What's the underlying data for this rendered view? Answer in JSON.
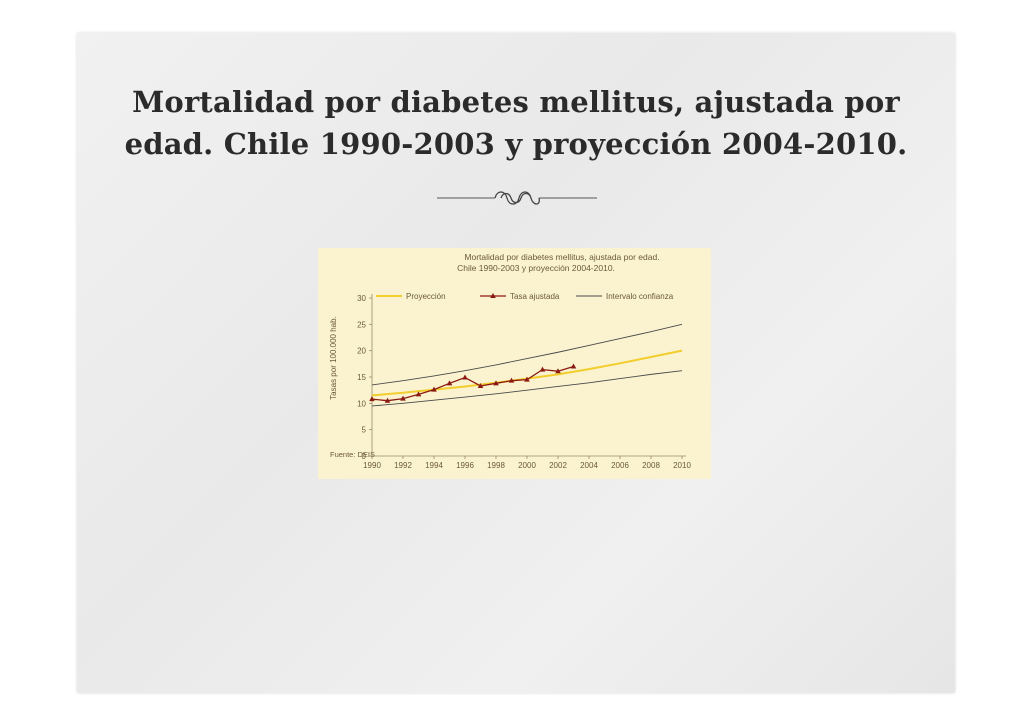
{
  "slide": {
    "title_line1": "Mortalidad por diabetes mellitus, ajustada por",
    "title_line2": "edad. Chile 1990-2003 y proyección 2004-2010."
  },
  "chart_data": {
    "type": "line",
    "title_line1": "Mortalidad por diabetes mellitus, ajustada por edad.",
    "title_line2": "Chile 1990-2003 y proyección 2004-2010.",
    "ylabel": "Tasas por 100.000 hab.",
    "xlabel": "",
    "source": "Fuente: DEIS",
    "ylim": [
      0,
      30
    ],
    "yticks": [
      0,
      5,
      10,
      15,
      20,
      25,
      30
    ],
    "xlim": [
      1990,
      2010
    ],
    "xticks": [
      1990,
      1992,
      1994,
      1996,
      1998,
      2000,
      2002,
      2004,
      2006,
      2008,
      2010
    ],
    "legend_position": "top",
    "grid": false,
    "series": [
      {
        "name": "Proyección",
        "color": "#f2cd2c",
        "x": [
          1990,
          1992,
          1994,
          1996,
          1998,
          2000,
          2002,
          2004,
          2006,
          2008,
          2010
        ],
        "values": [
          11.5,
          12.0,
          12.6,
          13.2,
          13.9,
          14.7,
          15.5,
          16.5,
          17.6,
          18.8,
          20.0
        ]
      },
      {
        "name": "Tasa ajustada",
        "color": "#8b1a10",
        "x": [
          1990,
          1991,
          1992,
          1993,
          1994,
          1995,
          1996,
          1997,
          1998,
          1999,
          2000,
          2001,
          2002,
          2003
        ],
        "values": [
          10.8,
          10.5,
          10.9,
          11.7,
          12.6,
          13.8,
          14.9,
          13.3,
          13.8,
          14.3,
          14.5,
          16.4,
          16.1,
          17.0
        ]
      },
      {
        "name": "Intervalo confianza",
        "color": "#4a4a4a",
        "parts": [
          {
            "x": [
              1990,
              1992,
              1994,
              1996,
              1998,
              2000,
              2002,
              2004,
              2006,
              2008,
              2010
            ],
            "values": [
              13.5,
              14.3,
              15.2,
              16.2,
              17.3,
              18.5,
              19.7,
              21.0,
              22.3,
              23.6,
              25.0
            ]
          },
          {
            "x": [
              1990,
              1992,
              1994,
              1996,
              1998,
              2000,
              2002,
              2004,
              2006,
              2008,
              2010
            ],
            "values": [
              9.5,
              10.0,
              10.6,
              11.2,
              11.8,
              12.5,
              13.2,
              13.9,
              14.7,
              15.5,
              16.2
            ]
          }
        ]
      }
    ]
  }
}
